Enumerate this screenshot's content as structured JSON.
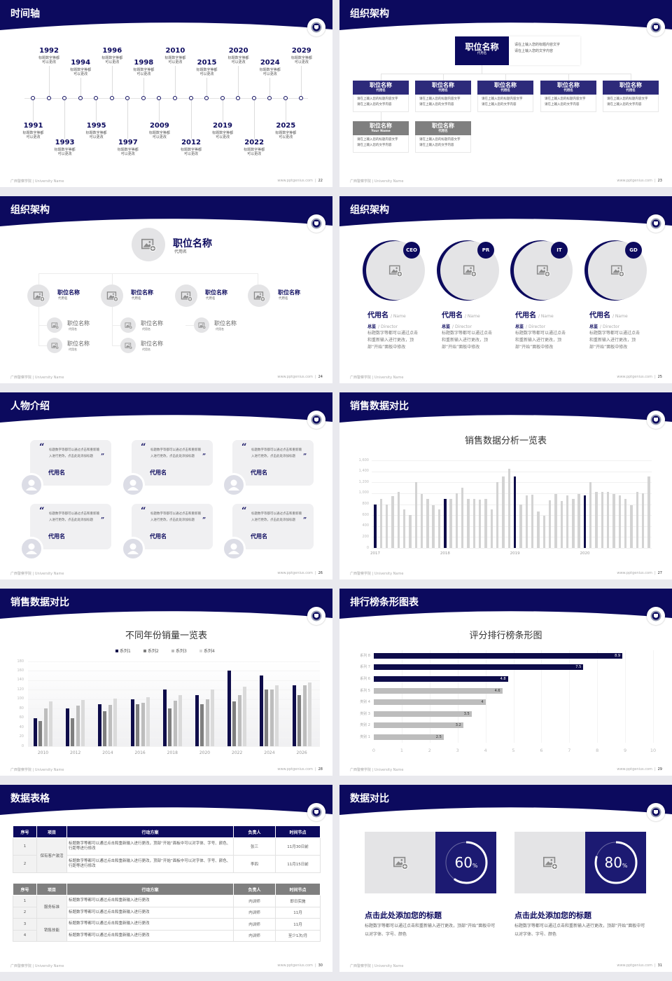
{
  "footer": {
    "school": "广西警察学院 | University Name",
    "site": "www.pptgenius.com"
  },
  "colors": {
    "navy": "#0c0a5e",
    "card_navy": "#2d2a7a",
    "card_gray": "#7f7f7f",
    "chart_dark": "#0e0c4a",
    "chart_gray": "#d3d3d3",
    "bar_gray": "#bdbdbd",
    "placeholder": "#e4e4e6",
    "compare_navy": "#1c1a72"
  },
  "slides": [
    {
      "title": "时间轴",
      "page": "22",
      "timeline": [
        {
          "year": "1991",
          "desc": "标题数字等都可以更改"
        },
        {
          "year": "1992",
          "desc": "标题数字等都可以更改"
        },
        {
          "year": "1993",
          "desc": "标题数字等都可以更改"
        },
        {
          "year": "1994",
          "desc": "标题数字等都可以更改"
        },
        {
          "year": "1995",
          "desc": "标题数字等都可以更改"
        },
        {
          "year": "1996",
          "desc": "标题数字等都可以更改"
        },
        {
          "year": "1997",
          "desc": "标题数字等都可以更改"
        },
        {
          "year": "1998",
          "desc": "标题数字等都可以更改"
        },
        {
          "year": "2009",
          "desc": "标题数字等都可以更改"
        },
        {
          "year": "2010",
          "desc": "标题数字等都可以更改"
        },
        {
          "year": "2012",
          "desc": "标题数字等都可以更改"
        },
        {
          "year": "2015",
          "desc": "标题数字等都可以更改"
        },
        {
          "year": "2019",
          "desc": "标题数字等都可以更改"
        },
        {
          "year": "2020",
          "desc": "标题数字等都可以更改"
        },
        {
          "year": "2022",
          "desc": "标题数字等都可以更改"
        },
        {
          "year": "2024",
          "desc": "标题数字等都可以更改"
        },
        {
          "year": "2025",
          "desc": "标题数字等都可以更改"
        },
        {
          "year": "2029",
          "desc": "标题数字等都可以更改"
        }
      ]
    },
    {
      "title": "组织架构",
      "page": "23",
      "top": {
        "title": "职位名称",
        "sub": "代用名",
        "lines": [
          "请在上输入您的标题内容文字",
          "请在上输入您的文字内容"
        ]
      },
      "cards": [
        {
          "title": "职位名称",
          "sub": "代用名",
          "style": "navy",
          "lines": [
            "请在上输入您的标题内容文字",
            "请在上输入您的文字内容"
          ]
        },
        {
          "title": "职位名称",
          "sub": "代用名",
          "style": "navy",
          "lines": [
            "请在上输入您的标题内容文字",
            "请在上输入您的文字内容"
          ]
        },
        {
          "title": "职位名称",
          "sub": "代用名",
          "style": "navy",
          "lines": [
            "请在上输入您的标题内容文字",
            "请在上输入您的文字内容"
          ]
        },
        {
          "title": "职位名称",
          "sub": "代用名",
          "style": "navy",
          "lines": [
            "请在上输入您的标题内容文字",
            "请在上输入您的文字内容"
          ]
        },
        {
          "title": "职位名称",
          "sub": "代用名",
          "style": "navy",
          "lines": [
            "请在上输入您的标题内容文字",
            "请在上输入您的文字内容"
          ]
        },
        {
          "title": "职位名称",
          "sub": "Your Name",
          "style": "gray",
          "lines": [
            "请在上输入您的标题内容文字",
            "请在上输入您的文字内容"
          ]
        },
        {
          "title": "职位名称",
          "sub": "代用名",
          "style": "gray",
          "lines": [
            "请在上输入您的标题内容文字",
            "请在上输入您的文字内容"
          ]
        }
      ]
    },
    {
      "title": "组织架构",
      "page": "24",
      "top": {
        "title": "职位名称",
        "sub": "代用名"
      },
      "level2": [
        {
          "title": "职位名称",
          "sub": "代用名"
        },
        {
          "title": "职位名称",
          "sub": "代用名"
        },
        {
          "title": "职位名称",
          "sub": "代用名"
        },
        {
          "title": "职位名称",
          "sub": "代用名"
        }
      ],
      "level3": [
        {
          "title": "职位名称",
          "sub": "代用名"
        },
        {
          "title": "职位名称",
          "sub": "代用名"
        },
        {
          "title": "职位名称",
          "sub": "代用名"
        },
        {
          "title": "职位名称",
          "sub": "代用名"
        },
        {
          "title": "职位名称",
          "sub": "代用名"
        }
      ]
    },
    {
      "title": "组织架构",
      "page": "25",
      "people": [
        {
          "badge": "CEO",
          "name": "代用名",
          "name_en": "/ Name",
          "role": "总监",
          "role_en": "/ Director",
          "desc": "标题数字等都可以通过点击和重新输入进行更改，顶部“开始”面板中修改"
        },
        {
          "badge": "PR",
          "name": "代用名",
          "name_en": "/ Name",
          "role": "总监",
          "role_en": "/ Director",
          "desc": "标题数字等都可以通过点击和重新输入进行更改，顶部“开始”面板中修改"
        },
        {
          "badge": "IT",
          "name": "代用名",
          "name_en": "/ Name",
          "role": "总监",
          "role_en": "/ Director",
          "desc": "标题数字等都可以通过点击和重新输入进行更改，顶部“开始”面板中修改"
        },
        {
          "badge": "GD",
          "name": "代用名",
          "name_en": "/ Name",
          "role": "总监",
          "role_en": "/ Director",
          "desc": "标题数字等都可以通过点击和重新输入进行更改，顶部“开始”面板中修改"
        }
      ]
    },
    {
      "title": "人物介绍",
      "page": "26",
      "quotes": [
        {
          "text": "标题数字等都可以通过点击和重新输入进行更改，点击此处添加标题",
          "name": "代用名"
        },
        {
          "text": "标题数字等都可以通过点击和重新输入进行更改，点击此处添加标题",
          "name": "代用名"
        },
        {
          "text": "标题数字等都可以通过点击和重新输入进行更改，点击此处添加标题",
          "name": "代用名"
        },
        {
          "text": "标题数字等都可以通过点击和重新输入进行更改，点击此处添加标题",
          "name": "代用名"
        },
        {
          "text": "标题数字等都可以通过点击和重新输入进行更改，点击此处添加标题",
          "name": "代用名"
        },
        {
          "text": "标题数字等都可以通过点击和重新输入进行更改，点击此处添加标题",
          "name": "代用名"
        }
      ]
    },
    {
      "title": "销售数据对比",
      "page": "27"
    },
    {
      "title": "销售数据对比",
      "page": "28"
    },
    {
      "title": "排行榜条形图表",
      "page": "29"
    },
    {
      "title": "数据表格",
      "page": "30",
      "table1": {
        "headers": [
          "序号",
          "项目",
          "行动方案",
          "负责人",
          "时间节点"
        ],
        "groups": [
          {
            "name": "保有客户激活",
            "rows": [
              {
                "no": "1",
                "plan": "标题数字等都可以通过点击和重新输入进行更改，顶部“开始”面板中可以对字体、字号、颜色、行距等进行修改",
                "owner": "张三",
                "date": "11月30日前"
              },
              {
                "no": "2",
                "plan": "标题数字等都可以通过点击和重新输入进行更改，顶部“开始”面板中可以对字体、字号、颜色、行距等进行修改",
                "owner": "李四",
                "date": "11月15日前"
              }
            ]
          }
        ]
      },
      "table2": {
        "headers": [
          "序号",
          "项目",
          "行动方案",
          "负责人",
          "时间节点"
        ],
        "groups": [
          {
            "name": "服务标准",
            "rows": [
              {
                "no": "1",
                "plan": "标题数字等都可以通过点击和重新输入进行更改",
                "owner": "内训师",
                "date": "即日实施"
              },
              {
                "no": "2",
                "plan": "标题数字等都可以通过点击和重新输入进行更改",
                "owner": "内训师",
                "date": "11月"
              }
            ]
          },
          {
            "name": "销售技能",
            "rows": [
              {
                "no": "3",
                "plan": "标题数字等都可以通过点击和重新输入进行更改",
                "owner": "内训师",
                "date": "11月"
              },
              {
                "no": "4",
                "plan": "标题数字等都可以通过点击和重新输入进行更改",
                "owner": "内训师",
                "date": "至少1次/月"
              }
            ]
          }
        ]
      }
    },
    {
      "title": "数据对比",
      "page": "31",
      "cards": [
        {
          "percent": 60,
          "value": "60",
          "unit": "%",
          "title": "点击此处添加您的标题",
          "desc": "标题数字等都可以通过点击和重新输入进行更改，顶部“开始”面板中可以对字体、字号、颜色"
        },
        {
          "percent": 80,
          "value": "80",
          "unit": "%",
          "title": "点击此处添加您的标题",
          "desc": "标题数字等都可以通过点击和重新输入进行更改，顶部“开始”面板中可以对字体、字号、颜色"
        }
      ]
    }
  ],
  "chart_data": [
    {
      "type": "bar",
      "title": "销售数据分析一览表",
      "x_labels": [
        "2017",
        "2018",
        "2019",
        "2020"
      ],
      "values": [
        800,
        900,
        800,
        950,
        1020,
        700,
        600,
        1200,
        990,
        890,
        780,
        700,
        890,
        890,
        1000,
        1100,
        900,
        900,
        880,
        900,
        700,
        1200,
        1300,
        1450,
        1300,
        800,
        965,
        970,
        665,
        590,
        875,
        980,
        860,
        965,
        890,
        980,
        955,
        1200,
        1020,
        1030,
        1020,
        980,
        965,
        890,
        780,
        1020,
        1000,
        1300
      ],
      "highlighted": [
        0,
        12,
        24,
        36
      ],
      "ylim": [
        0,
        1600
      ],
      "yticks": [
        "0",
        "200",
        "400",
        "600",
        "800",
        "1,000",
        "1,200",
        "1,400",
        "1,600"
      ],
      "grid": true
    },
    {
      "type": "bar",
      "title": "不同年份销量一览表",
      "categories": [
        "2010",
        "2012",
        "2014",
        "2016",
        "2018",
        "2020",
        "2022",
        "2024",
        "2026"
      ],
      "series": [
        {
          "name": "系列1",
          "values": [
            60,
            80,
            90,
            100,
            120,
            109,
            160,
            150,
            130
          ]
        },
        {
          "name": "系列2",
          "values": [
            54,
            60,
            75,
            90,
            80,
            90,
            95,
            120,
            109
          ]
        },
        {
          "name": "系列3",
          "values": [
            80,
            86,
            88,
            92,
            97,
            100,
            109,
            120,
            130
          ]
        },
        {
          "name": "系列4",
          "values": [
            95,
            98,
            101,
            104,
            109,
            120,
            126,
            130,
            135
          ]
        }
      ],
      "series_colors": [
        "#0e0c4a",
        "#7f7f7f",
        "#bdbdbd",
        "#dadada"
      ],
      "ylim": [
        0,
        180
      ],
      "yticks": [
        "0",
        "20",
        "40",
        "60",
        "80",
        "100",
        "120",
        "140",
        "160",
        "180"
      ],
      "legend": "top",
      "grid": true
    },
    {
      "type": "bar",
      "orientation": "horizontal",
      "title": "评分排行榜条形图",
      "categories": [
        "类别 1",
        "类别 2",
        "类别 3",
        "类别 4",
        "系列 5",
        "系列 6",
        "系列 7",
        "系列 8"
      ],
      "values": [
        2.5,
        3.2,
        3.5,
        4,
        4.6,
        4.8,
        7.5,
        8.9
      ],
      "highlighted": [
        5,
        6,
        7
      ],
      "xlim": [
        0,
        10
      ],
      "xticks": [
        "0",
        "1",
        "2",
        "3",
        "4",
        "5",
        "6",
        "7",
        "8",
        "9",
        "10"
      ],
      "grid": true
    }
  ]
}
